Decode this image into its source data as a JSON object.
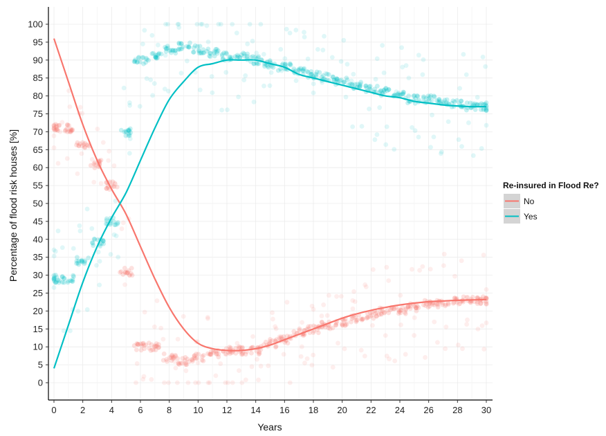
{
  "chart_data": {
    "type": "scatter",
    "xlabel": "Years",
    "ylabel": "Percentage of flood risk houses [%]",
    "xlim": [
      0,
      30
    ],
    "ylim": [
      0,
      100
    ],
    "x_ticks": [
      "0",
      "2",
      "4",
      "6",
      "8",
      "10",
      "12",
      "14",
      "16",
      "18",
      "20",
      "22",
      "24",
      "26",
      "28",
      "30"
    ],
    "y_ticks": [
      "0",
      "5",
      "10",
      "15",
      "20",
      "25",
      "30",
      "35",
      "40",
      "45",
      "50",
      "55",
      "60",
      "65",
      "70",
      "75",
      "80",
      "85",
      "90",
      "95",
      "100"
    ],
    "grid": true,
    "legend": {
      "title": "Re-insured in Flood Re?",
      "position": "right",
      "entries": [
        "No",
        "Yes"
      ]
    },
    "series": [
      {
        "name": "No",
        "color": "#F8766D",
        "smooth_x": [
          0,
          1,
          2,
          3,
          4,
          5,
          6,
          7,
          8,
          9,
          10,
          11,
          12,
          13,
          14,
          15,
          16,
          17,
          18,
          19,
          20,
          21,
          22,
          23,
          24,
          25,
          26,
          27,
          28,
          29,
          30
        ],
        "smooth_y": [
          96,
          84,
          72,
          62,
          54,
          47,
          38,
          29,
          21,
          15,
          11,
          9.5,
          9,
          9,
          9.5,
          10.5,
          12,
          13.5,
          15,
          16.5,
          18,
          19.2,
          20.2,
          21,
          21.7,
          22.2,
          22.6,
          22.8,
          23,
          23.1,
          23.2
        ],
        "points_x": [
          0,
          1,
          2,
          3,
          4,
          5,
          6,
          7,
          8,
          9,
          10,
          11,
          12,
          13,
          14,
          15,
          16,
          17,
          18,
          19,
          20,
          21,
          22,
          23,
          24,
          25,
          26,
          27,
          28,
          29,
          30
        ],
        "points_y": [
          71,
          71,
          66,
          61,
          55,
          31,
          10,
          10,
          7,
          6,
          7,
          8,
          9,
          9,
          9,
          11,
          12,
          14,
          15,
          16,
          17,
          18,
          19,
          20,
          20,
          21,
          22,
          22,
          23,
          23,
          23
        ]
      },
      {
        "name": "Yes",
        "color": "#00BFC4",
        "smooth_x": [
          0,
          1,
          2,
          3,
          4,
          5,
          6,
          7,
          8,
          9,
          10,
          11,
          12,
          13,
          14,
          15,
          16,
          17,
          18,
          19,
          20,
          21,
          22,
          23,
          24,
          25,
          26,
          27,
          28,
          29,
          30
        ],
        "smooth_y": [
          4,
          16,
          28,
          38,
          46,
          53,
          62,
          71,
          79,
          84,
          88,
          89,
          90,
          90,
          90,
          89,
          88,
          86,
          85,
          84,
          83,
          82,
          81,
          80,
          79.5,
          78.5,
          78,
          77.5,
          77.2,
          77,
          77
        ],
        "points_x": [
          0,
          1,
          2,
          3,
          4,
          5,
          6,
          7,
          8,
          9,
          10,
          11,
          12,
          13,
          14,
          15,
          16,
          17,
          18,
          19,
          20,
          21,
          22,
          23,
          24,
          25,
          26,
          27,
          28,
          29,
          30
        ],
        "points_y": [
          29,
          29,
          34,
          39,
          45,
          70,
          90,
          91,
          93,
          94,
          93,
          92,
          91,
          91,
          90,
          89,
          88,
          87,
          86,
          85,
          84,
          83,
          82,
          81,
          80,
          79,
          79,
          78,
          78,
          77,
          77
        ]
      }
    ]
  }
}
